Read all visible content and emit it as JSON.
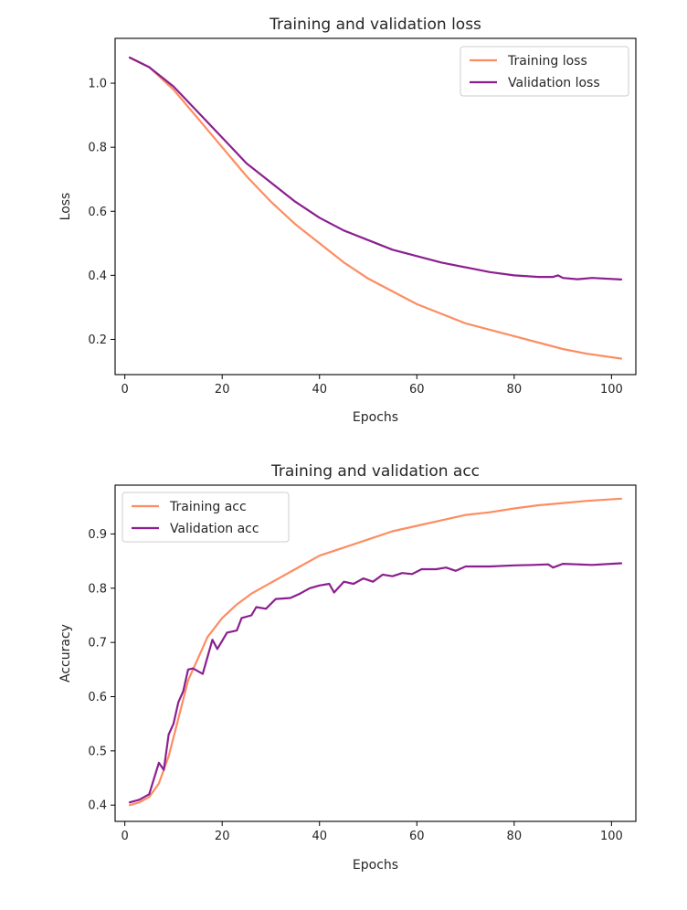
{
  "chart_data": [
    {
      "type": "line",
      "title": "Training and validation loss",
      "xlabel": "Epochs",
      "ylabel": "Loss",
      "xlim": [
        -2,
        105
      ],
      "ylim": [
        0.09,
        1.14
      ],
      "xticks": [
        0,
        20,
        40,
        60,
        80,
        100
      ],
      "yticks": [
        0.2,
        0.4,
        0.6,
        0.8,
        1.0
      ],
      "ytick_labels": [
        "0.2",
        "0.4",
        "0.6",
        "0.8",
        "1.0"
      ],
      "legend_position": "top-right",
      "series": [
        {
          "name": "Training loss",
          "color": "#fc8d62",
          "points": [
            [
              1,
              1.08
            ],
            [
              5,
              1.05
            ],
            [
              10,
              0.98
            ],
            [
              15,
              0.89
            ],
            [
              20,
              0.8
            ],
            [
              25,
              0.71
            ],
            [
              30,
              0.63
            ],
            [
              35,
              0.56
            ],
            [
              40,
              0.5
            ],
            [
              45,
              0.44
            ],
            [
              50,
              0.39
            ],
            [
              55,
              0.35
            ],
            [
              60,
              0.31
            ],
            [
              65,
              0.28
            ],
            [
              70,
              0.25
            ],
            [
              75,
              0.23
            ],
            [
              80,
              0.21
            ],
            [
              85,
              0.19
            ],
            [
              90,
              0.17
            ],
            [
              95,
              0.155
            ],
            [
              102,
              0.14
            ]
          ]
        },
        {
          "name": "Validation loss",
          "color": "#8b1f8f",
          "points": [
            [
              1,
              1.08
            ],
            [
              5,
              1.05
            ],
            [
              10,
              0.99
            ],
            [
              15,
              0.91
            ],
            [
              20,
              0.83
            ],
            [
              25,
              0.75
            ],
            [
              30,
              0.69
            ],
            [
              35,
              0.63
            ],
            [
              40,
              0.58
            ],
            [
              45,
              0.54
            ],
            [
              50,
              0.51
            ],
            [
              55,
              0.48
            ],
            [
              60,
              0.46
            ],
            [
              65,
              0.44
            ],
            [
              70,
              0.425
            ],
            [
              75,
              0.41
            ],
            [
              80,
              0.4
            ],
            [
              85,
              0.395
            ],
            [
              88,
              0.395
            ],
            [
              89,
              0.4
            ],
            [
              90,
              0.392
            ],
            [
              93,
              0.388
            ],
            [
              96,
              0.392
            ],
            [
              102,
              0.387
            ]
          ]
        }
      ]
    },
    {
      "type": "line",
      "title": "Training and validation acc",
      "xlabel": "Epochs",
      "ylabel": "Accuracy",
      "xlim": [
        -2,
        105
      ],
      "ylim": [
        0.37,
        0.99
      ],
      "xticks": [
        0,
        20,
        40,
        60,
        80,
        100
      ],
      "yticks": [
        0.4,
        0.5,
        0.6,
        0.7,
        0.8,
        0.9
      ],
      "ytick_labels": [
        "0.4",
        "0.5",
        "0.6",
        "0.7",
        "0.8",
        "0.9"
      ],
      "legend_position": "top-left",
      "series": [
        {
          "name": "Training acc",
          "color": "#fc8d62",
          "points": [
            [
              1,
              0.4
            ],
            [
              3,
              0.405
            ],
            [
              5,
              0.415
            ],
            [
              7,
              0.44
            ],
            [
              9,
              0.49
            ],
            [
              11,
              0.56
            ],
            [
              13,
              0.63
            ],
            [
              15,
              0.67
            ],
            [
              17,
              0.71
            ],
            [
              20,
              0.745
            ],
            [
              23,
              0.77
            ],
            [
              26,
              0.79
            ],
            [
              30,
              0.81
            ],
            [
              35,
              0.835
            ],
            [
              40,
              0.86
            ],
            [
              45,
              0.875
            ],
            [
              50,
              0.89
            ],
            [
              55,
              0.905
            ],
            [
              60,
              0.915
            ],
            [
              65,
              0.925
            ],
            [
              70,
              0.935
            ],
            [
              75,
              0.94
            ],
            [
              80,
              0.947
            ],
            [
              85,
              0.953
            ],
            [
              90,
              0.957
            ],
            [
              95,
              0.961
            ],
            [
              102,
              0.965
            ]
          ]
        },
        {
          "name": "Validation acc",
          "color": "#8b1f8f",
          "points": [
            [
              1,
              0.405
            ],
            [
              3,
              0.41
            ],
            [
              5,
              0.42
            ],
            [
              7,
              0.478
            ],
            [
              8,
              0.465
            ],
            [
              9,
              0.53
            ],
            [
              10,
              0.55
            ],
            [
              11,
              0.59
            ],
            [
              12,
              0.61
            ],
            [
              13,
              0.65
            ],
            [
              14,
              0.652
            ],
            [
              16,
              0.642
            ],
            [
              18,
              0.705
            ],
            [
              19,
              0.688
            ],
            [
              21,
              0.718
            ],
            [
              23,
              0.722
            ],
            [
              24,
              0.745
            ],
            [
              26,
              0.75
            ],
            [
              27,
              0.765
            ],
            [
              29,
              0.762
            ],
            [
              31,
              0.78
            ],
            [
              34,
              0.782
            ],
            [
              36,
              0.79
            ],
            [
              38,
              0.8
            ],
            [
              40,
              0.805
            ],
            [
              42,
              0.808
            ],
            [
              43,
              0.792
            ],
            [
              45,
              0.812
            ],
            [
              47,
              0.808
            ],
            [
              49,
              0.818
            ],
            [
              51,
              0.812
            ],
            [
              53,
              0.825
            ],
            [
              55,
              0.822
            ],
            [
              57,
              0.828
            ],
            [
              59,
              0.826
            ],
            [
              61,
              0.835
            ],
            [
              64,
              0.835
            ],
            [
              66,
              0.838
            ],
            [
              68,
              0.832
            ],
            [
              70,
              0.84
            ],
            [
              75,
              0.84
            ],
            [
              80,
              0.842
            ],
            [
              84,
              0.843
            ],
            [
              87,
              0.844
            ],
            [
              88,
              0.838
            ],
            [
              90,
              0.845
            ],
            [
              93,
              0.844
            ],
            [
              96,
              0.843
            ],
            [
              102,
              0.846
            ]
          ]
        }
      ]
    }
  ]
}
